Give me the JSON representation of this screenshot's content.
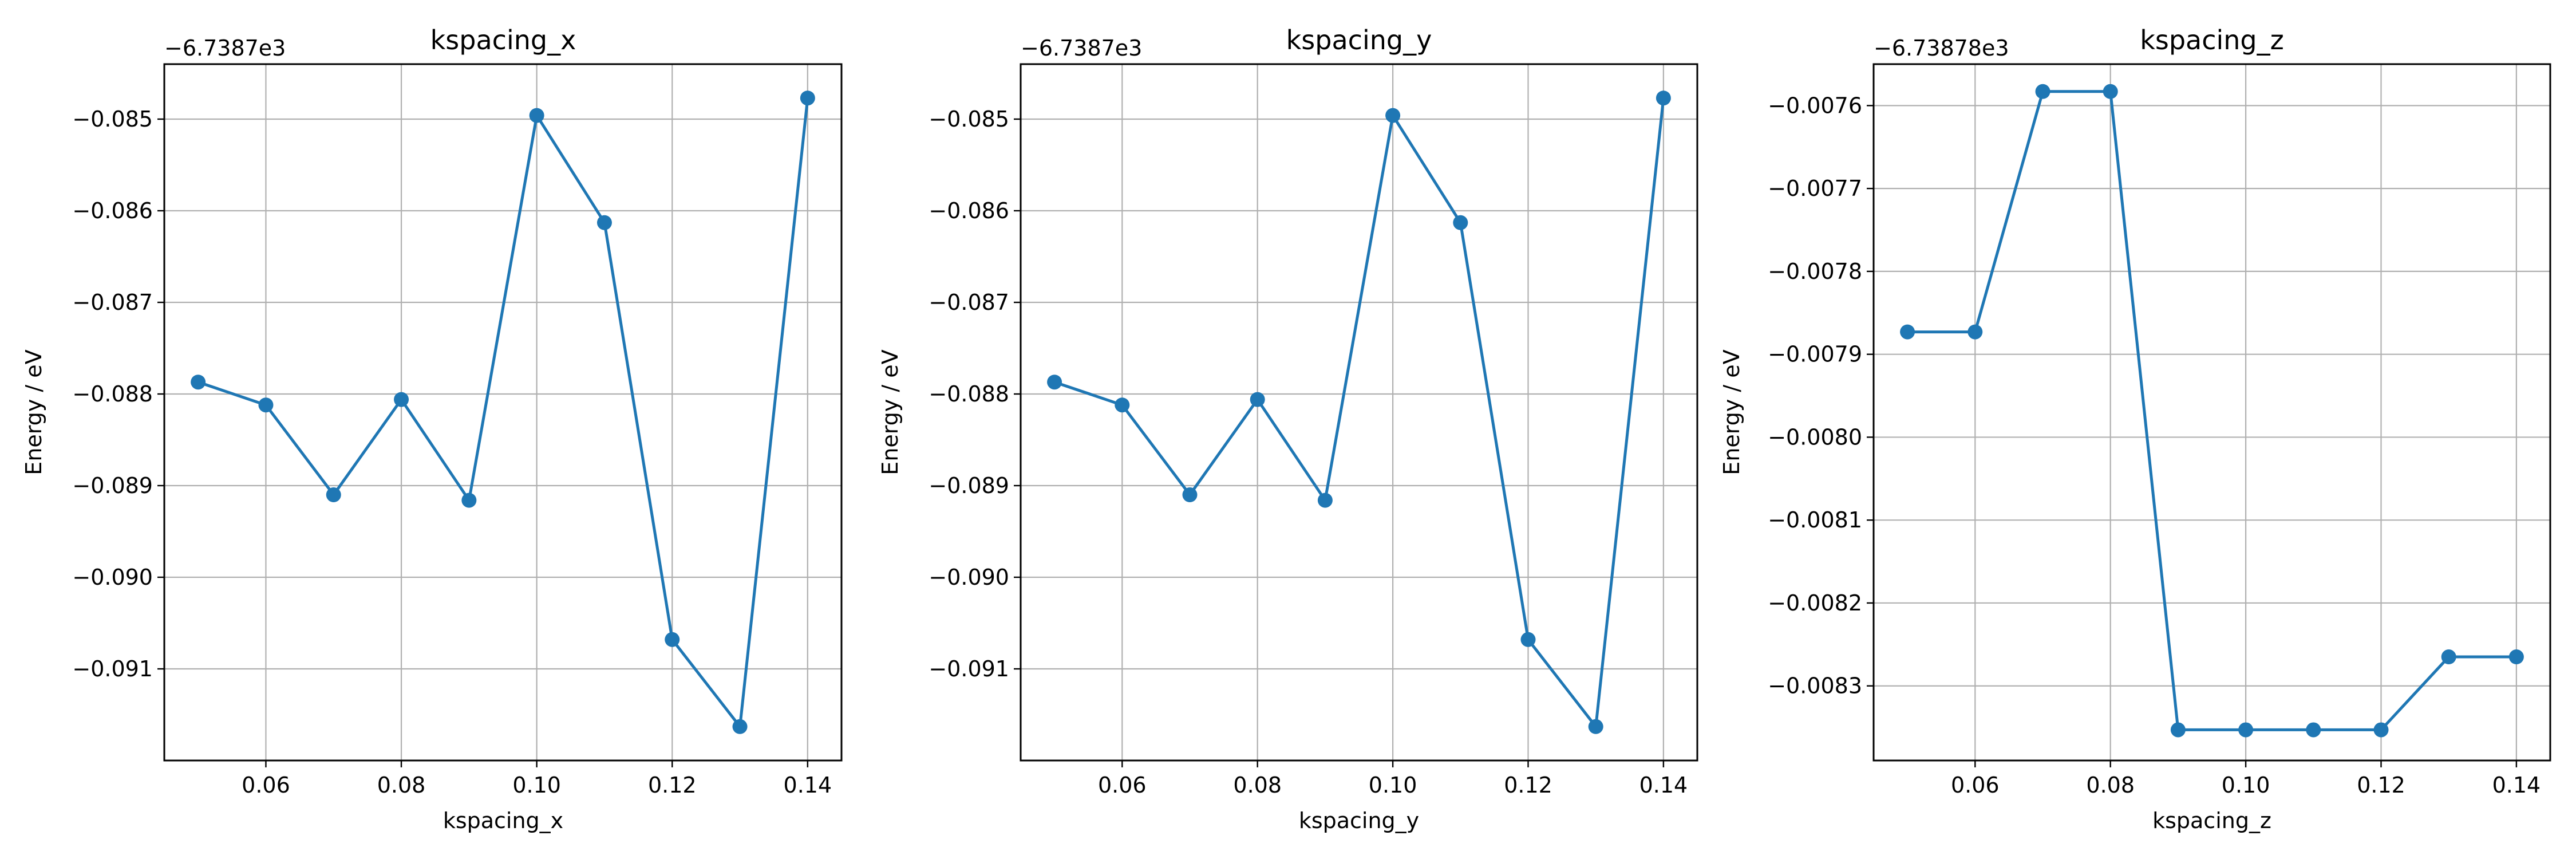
{
  "colors": {
    "series": "#1f77b4",
    "grid": "#b0b0b0",
    "axes": "#000000"
  },
  "chart_data": [
    {
      "type": "line",
      "title": "kspacing_x",
      "xlabel": "kspacing_x",
      "ylabel": "Energy / eV",
      "y_offset_label": "−6.7387e3",
      "grid": true,
      "marker": "circle",
      "xlim": [
        0.045,
        0.145
      ],
      "ylim": [
        -0.092,
        -0.0844
      ],
      "x_ticks": [
        0.06,
        0.08,
        0.1,
        0.12,
        0.14
      ],
      "x_tick_labels": [
        "0.06",
        "0.08",
        "0.10",
        "0.12",
        "0.14"
      ],
      "y_ticks": [
        -0.091,
        -0.09,
        -0.089,
        -0.088,
        -0.087,
        -0.086,
        -0.085
      ],
      "y_tick_labels": [
        "−0.091",
        "−0.090",
        "−0.089",
        "−0.088",
        "−0.087",
        "−0.086",
        "−0.085"
      ],
      "x": [
        0.05,
        0.06,
        0.07,
        0.08,
        0.09,
        0.1,
        0.11,
        0.12,
        0.13,
        0.14
      ],
      "y": [
        -0.08787,
        -0.08812,
        -0.0891,
        -0.08806,
        -0.08916,
        -0.08496,
        -0.08613,
        -0.09068,
        -0.09163,
        -0.08477
      ]
    },
    {
      "type": "line",
      "title": "kspacing_y",
      "xlabel": "kspacing_y",
      "ylabel": "Energy / eV",
      "y_offset_label": "−6.7387e3",
      "grid": true,
      "marker": "circle",
      "xlim": [
        0.045,
        0.145
      ],
      "ylim": [
        -0.092,
        -0.0844
      ],
      "x_ticks": [
        0.06,
        0.08,
        0.1,
        0.12,
        0.14
      ],
      "x_tick_labels": [
        "0.06",
        "0.08",
        "0.10",
        "0.12",
        "0.14"
      ],
      "y_ticks": [
        -0.091,
        -0.09,
        -0.089,
        -0.088,
        -0.087,
        -0.086,
        -0.085
      ],
      "y_tick_labels": [
        "−0.091",
        "−0.090",
        "−0.089",
        "−0.088",
        "−0.087",
        "−0.086",
        "−0.085"
      ],
      "x": [
        0.05,
        0.06,
        0.07,
        0.08,
        0.09,
        0.1,
        0.11,
        0.12,
        0.13,
        0.14
      ],
      "y": [
        -0.08787,
        -0.08812,
        -0.0891,
        -0.08806,
        -0.08916,
        -0.08496,
        -0.08613,
        -0.09068,
        -0.09163,
        -0.08477
      ]
    },
    {
      "type": "line",
      "title": "kspacing_z",
      "xlabel": "kspacing_z",
      "ylabel": "Energy / eV",
      "y_offset_label": "−6.73878e3",
      "grid": true,
      "marker": "circle",
      "xlim": [
        0.045,
        0.145
      ],
      "ylim": [
        -0.00839,
        -0.00755
      ],
      "x_ticks": [
        0.06,
        0.08,
        0.1,
        0.12,
        0.14
      ],
      "x_tick_labels": [
        "0.06",
        "0.08",
        "0.10",
        "0.12",
        "0.14"
      ],
      "y_ticks": [
        -0.0083,
        -0.0082,
        -0.0081,
        -0.008,
        -0.0079,
        -0.0078,
        -0.0077,
        -0.0076
      ],
      "y_tick_labels": [
        "−0.0083",
        "−0.0082",
        "−0.0081",
        "−0.0080",
        "−0.0079",
        "−0.0078",
        "−0.0077",
        "−0.0076"
      ],
      "x": [
        0.05,
        0.06,
        0.07,
        0.08,
        0.09,
        0.1,
        0.11,
        0.12,
        0.13,
        0.14
      ],
      "y": [
        -0.007873,
        -0.007873,
        -0.007583,
        -0.007583,
        -0.008353,
        -0.008353,
        -0.008353,
        -0.008353,
        -0.008265,
        -0.008265
      ]
    }
  ]
}
